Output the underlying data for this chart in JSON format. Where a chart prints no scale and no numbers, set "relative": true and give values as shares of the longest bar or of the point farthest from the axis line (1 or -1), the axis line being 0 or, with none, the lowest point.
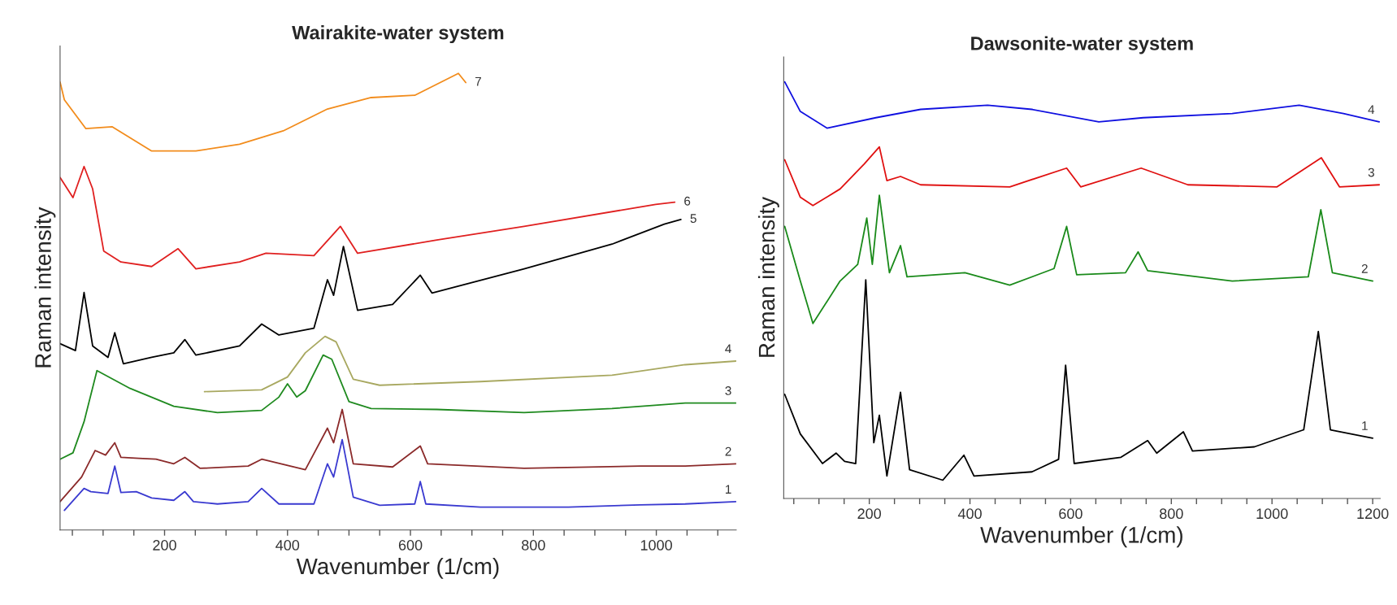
{
  "chart_data": [
    {
      "type": "line",
      "title": "Wairakite-water system",
      "xlabel": "Wavenumber (1/cm)",
      "ylabel": "Raman intensity",
      "relative": true,
      "xlim": [
        30,
        1130
      ],
      "xticks": [
        {
          "value": 50,
          "label": null
        },
        {
          "value": 100,
          "label": null
        },
        {
          "value": 150,
          "label": null
        },
        200,
        {
          "value": 250,
          "label": null
        },
        {
          "value": 300,
          "label": null
        },
        {
          "value": 350,
          "label": null
        },
        400,
        {
          "value": 450,
          "label": null
        },
        {
          "value": 500,
          "label": null
        },
        {
          "value": 550,
          "label": null
        },
        600,
        {
          "value": 650,
          "label": null
        },
        {
          "value": 700,
          "label": null
        },
        {
          "value": 750,
          "label": null
        },
        800,
        {
          "value": 850,
          "label": null
        },
        {
          "value": 900,
          "label": null
        },
        {
          "value": 950,
          "label": null
        },
        1000,
        {
          "value": 1050,
          "label": null
        },
        {
          "value": 1100,
          "label": null
        }
      ],
      "series": [
        {
          "name": "1",
          "color": "#3a3ad0",
          "x": [
            37,
            69,
            80,
            108,
            119,
            129,
            154,
            179,
            215,
            233,
            247,
            286,
            336,
            358,
            386,
            443,
            465,
            475,
            489,
            507,
            550,
            607,
            616,
            625,
            714,
            857,
            974,
            1047,
            1130
          ],
          "values": [
            0.043,
            0.091,
            0.084,
            0.08,
            0.14,
            0.082,
            0.084,
            0.07,
            0.065,
            0.084,
            0.062,
            0.057,
            0.062,
            0.091,
            0.057,
            0.057,
            0.145,
            0.116,
            0.198,
            0.072,
            0.054,
            0.057,
            0.106,
            0.057,
            0.05,
            0.05,
            0.055,
            0.057,
            0.062
          ]
        },
        {
          "name": "2",
          "color": "#8b2a2a",
          "x": [
            30,
            65,
            87,
            104,
            119,
            129,
            158,
            186,
            215,
            233,
            258,
            336,
            358,
            429,
            465,
            475,
            489,
            507,
            571,
            616,
            628,
            785,
            974,
            1047,
            1130
          ],
          "values": [
            0.062,
            0.116,
            0.174,
            0.164,
            0.191,
            0.159,
            0.157,
            0.155,
            0.145,
            0.159,
            0.135,
            0.14,
            0.155,
            0.132,
            0.223,
            0.191,
            0.264,
            0.145,
            0.138,
            0.184,
            0.145,
            0.135,
            0.14,
            0.14,
            0.145
          ]
        },
        {
          "name": "3",
          "color": "#1f8a1f",
          "x": [
            30,
            51,
            69,
            90,
            144,
            215,
            286,
            358,
            386,
            400,
            415,
            429,
            458,
            472,
            500,
            536,
            643,
            785,
            928,
            1047,
            1130
          ],
          "values": [
            0.155,
            0.169,
            0.237,
            0.349,
            0.31,
            0.271,
            0.257,
            0.262,
            0.291,
            0.32,
            0.291,
            0.305,
            0.383,
            0.374,
            0.281,
            0.266,
            0.264,
            0.257,
            0.266,
            0.278,
            0.278
          ]
        },
        {
          "name": "4",
          "color": "#a8a860",
          "x": [
            265,
            358,
            400,
            429,
            461,
            479,
            507,
            550,
            714,
            928,
            1047,
            1130
          ],
          "values": [
            0.303,
            0.307,
            0.335,
            0.388,
            0.424,
            0.412,
            0.33,
            0.317,
            0.325,
            0.339,
            0.362,
            0.37
          ]
        },
        {
          "name": "5",
          "color": "#000000",
          "x": [
            30,
            55,
            69,
            83,
            108,
            119,
            133,
            179,
            215,
            233,
            251,
            322,
            358,
            386,
            443,
            465,
            475,
            491,
            514,
            571,
            616,
            635,
            785,
            928,
            1013,
            1040
          ],
          "values": [
            0.408,
            0.393,
            0.52,
            0.403,
            0.378,
            0.432,
            0.364,
            0.378,
            0.388,
            0.417,
            0.383,
            0.403,
            0.451,
            0.427,
            0.442,
            0.548,
            0.514,
            0.621,
            0.481,
            0.494,
            0.558,
            0.519,
            0.572,
            0.626,
            0.67,
            0.68
          ]
        },
        {
          "name": "6",
          "color": "#e02020",
          "x": [
            30,
            51,
            69,
            83,
            101,
            129,
            179,
            222,
            251,
            322,
            365,
            443,
            486,
            514,
            643,
            785,
            999,
            1030
          ],
          "values": [
            0.772,
            0.728,
            0.796,
            0.747,
            0.611,
            0.587,
            0.577,
            0.616,
            0.572,
            0.587,
            0.606,
            0.601,
            0.665,
            0.606,
            0.635,
            0.665,
            0.713,
            0.718
          ]
        },
        {
          "name": "7",
          "color": "#f28c1c",
          "x": [
            30,
            37,
            72,
            115,
            179,
            251,
            322,
            393,
            465,
            536,
            607,
            678,
            690
          ],
          "values": [
            0.981,
            0.942,
            0.879,
            0.883,
            0.83,
            0.83,
            0.845,
            0.874,
            0.922,
            0.947,
            0.952,
            1.0,
            0.98
          ]
        }
      ]
    },
    {
      "type": "line",
      "title": "Dawsonite-water system",
      "xlabel": "Wavenumber (1/cm)",
      "ylabel": "Raman intensity",
      "relative": true,
      "xlim": [
        30,
        1215
      ],
      "xticks": [
        {
          "value": 50,
          "label": null
        },
        {
          "value": 100,
          "label": null
        },
        {
          "value": 150,
          "label": null
        },
        200,
        {
          "value": 250,
          "label": null
        },
        {
          "value": 300,
          "label": null
        },
        {
          "value": 350,
          "label": null
        },
        400,
        {
          "value": 450,
          "label": null
        },
        {
          "value": 500,
          "label": null
        },
        {
          "value": 550,
          "label": null
        },
        600,
        {
          "value": 650,
          "label": null
        },
        {
          "value": 700,
          "label": null
        },
        {
          "value": 750,
          "label": null
        },
        800,
        {
          "value": 850,
          "label": null
        },
        {
          "value": 900,
          "label": null
        },
        {
          "value": 950,
          "label": null
        },
        1000,
        {
          "value": 1050,
          "label": null
        },
        {
          "value": 1100,
          "label": null
        },
        {
          "value": 1150,
          "label": null
        },
        1200
      ],
      "series": [
        {
          "name": "1",
          "color": "#000000",
          "x": [
            32,
            63,
            107,
            134,
            151,
            173,
            193,
            209,
            220,
            235,
            262,
            280,
            346,
            388,
            408,
            523,
            576,
            590,
            607,
            700,
            753,
            771,
            824,
            842,
            965,
            1063,
            1092,
            1116,
            1200
          ],
          "values": [
            0.25,
            0.155,
            0.084,
            0.109,
            0.089,
            0.084,
            0.525,
            0.134,
            0.2,
            0.054,
            0.255,
            0.069,
            0.044,
            0.104,
            0.054,
            0.064,
            0.094,
            0.32,
            0.084,
            0.099,
            0.139,
            0.109,
            0.16,
            0.114,
            0.124,
            0.165,
            0.401,
            0.165,
            0.145
          ]
        },
        {
          "name": "2",
          "color": "#1a8a1a",
          "x": [
            32,
            63,
            88,
            142,
            177,
            195,
            206,
            220,
            240,
            262,
            275,
            390,
            479,
            567,
            592,
            612,
            709,
            734,
            753,
            921,
            1072,
            1097,
            1120,
            1200
          ],
          "values": [
            0.653,
            0.522,
            0.42,
            0.522,
            0.562,
            0.673,
            0.562,
            0.728,
            0.542,
            0.607,
            0.532,
            0.542,
            0.512,
            0.552,
            0.653,
            0.537,
            0.542,
            0.592,
            0.547,
            0.522,
            0.532,
            0.693,
            0.542,
            0.522
          ]
        },
        {
          "name": "3",
          "color": "#e01010",
          "x": [
            32,
            63,
            88,
            142,
            190,
            220,
            235,
            262,
            302,
            479,
            592,
            620,
            740,
            833,
            1010,
            1098,
            1134,
            1213
          ],
          "values": [
            0.813,
            0.723,
            0.703,
            0.743,
            0.803,
            0.844,
            0.763,
            0.773,
            0.753,
            0.748,
            0.793,
            0.748,
            0.793,
            0.753,
            0.748,
            0.818,
            0.748,
            0.753
          ]
        },
        {
          "name": "4",
          "color": "#1010e0",
          "x": [
            32,
            63,
            116,
            213,
            302,
            435,
            523,
            656,
            744,
            921,
            1054,
            1142,
            1213
          ],
          "values": [
            1.0,
            0.929,
            0.889,
            0.914,
            0.934,
            0.944,
            0.934,
            0.904,
            0.914,
            0.924,
            0.944,
            0.924,
            0.904
          ]
        }
      ]
    }
  ]
}
